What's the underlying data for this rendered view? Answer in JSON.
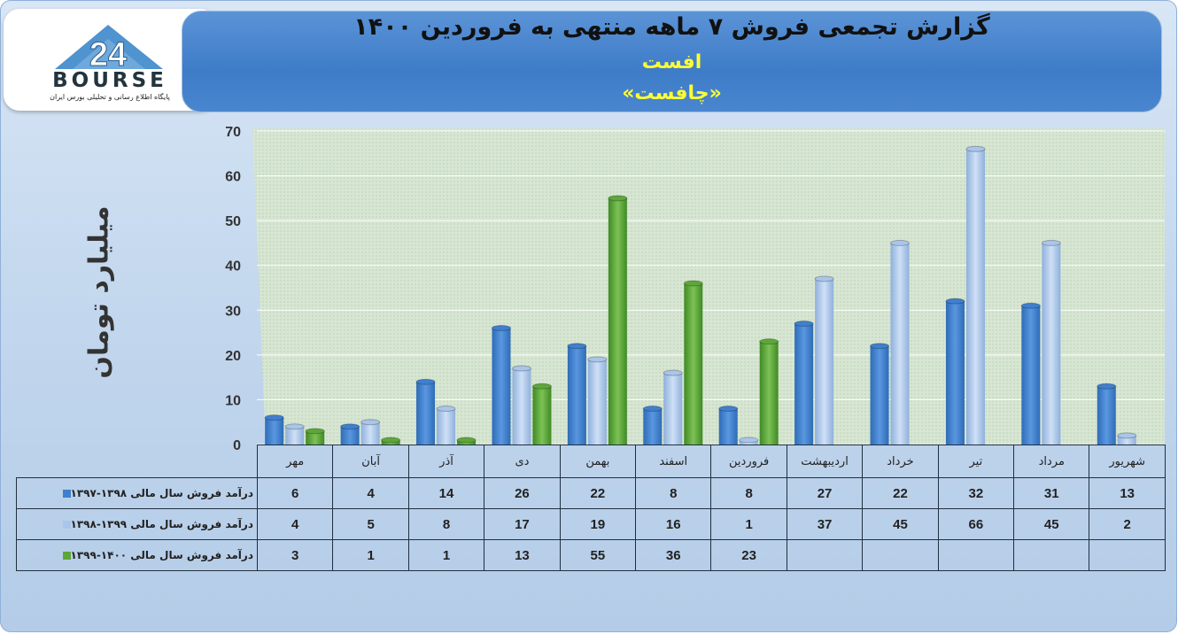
{
  "header": {
    "title": "گزارش تجمعی فروش ۷ ماهه منتهی به فروردین ۱۴۰۰",
    "company": "افست",
    "symbol": "«چافست»"
  },
  "logo": {
    "wordmark": "BOURSE",
    "tagline": "پایگاه اطلاع رسانی و تحلیلی بورس ایران"
  },
  "chart_data": {
    "type": "bar",
    "ylabel": "میلیارد تومان",
    "ylim": [
      0,
      70
    ],
    "yticks": [
      0,
      10,
      20,
      30,
      40,
      50,
      60,
      70
    ],
    "grid": true,
    "legend": "table-left",
    "categories": [
      "شهریور",
      "مرداد",
      "تیر",
      "خرداد",
      "اردیبهشت",
      "فروردین",
      "اسفند",
      "بهمن",
      "دی",
      "آذر",
      "آبان",
      "مهر"
    ],
    "series": [
      {
        "name": "درآمد فروش سال مالی ۱۳۹۸-۱۳۹۷",
        "color": "#3f7fce",
        "values": [
          13,
          31,
          32,
          22,
          27,
          8,
          8,
          22,
          26,
          14,
          4,
          6
        ]
      },
      {
        "name": "درآمد فروش سال مالی ۱۳۹۹-۱۳۹۸",
        "color": "#a9c5ea",
        "values": [
          2,
          45,
          66,
          45,
          37,
          1,
          16,
          19,
          17,
          8,
          5,
          4
        ]
      },
      {
        "name": "درآمد فروش سال مالی ۱۴۰۰-۱۳۹۹",
        "color": "#5ea63a",
        "values": [
          null,
          null,
          null,
          null,
          null,
          23,
          36,
          55,
          13,
          1,
          1,
          3
        ]
      }
    ]
  }
}
